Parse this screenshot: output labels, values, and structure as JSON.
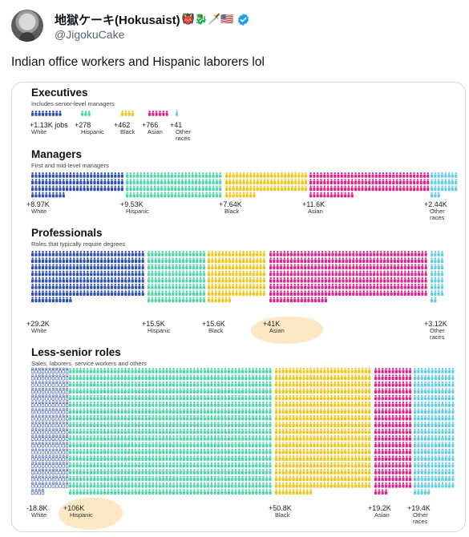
{
  "tweet": {
    "display_name": "地獄ケーキ(Hokusaist)",
    "name_emojis": "👹🐉🗡️🇺🇸",
    "handle": "@JigokuCake",
    "text": "Indian office workers and Hispanic laborers lol",
    "verified": true,
    "accent_color": "#1d9bf0"
  },
  "colors": {
    "white": "#2d4fb5",
    "hispanic": "#4fd6a6",
    "black": "#f2c51a",
    "asian": "#e0248b",
    "other": "#63cde6",
    "highlight": "#fcd694"
  },
  "chart_data": {
    "type": "pictogram",
    "sections": [
      {
        "title": "Executives",
        "subtitle": "Includes senior-level managers",
        "groups": [
          {
            "value": "+1.13K jobs",
            "label": "White",
            "label2": ""
          },
          {
            "value": "+278",
            "label": "Hispanic",
            "label2": ""
          },
          {
            "value": "+462",
            "label": "Black",
            "label2": ""
          },
          {
            "value": "+766",
            "label": "Asian",
            "label2": ""
          },
          {
            "value": "+41",
            "label": "Other",
            "label2": "races"
          }
        ]
      },
      {
        "title": "Managers",
        "subtitle": "First and mid-level managers",
        "groups": [
          {
            "value": "+8.97K",
            "label": "White",
            "label2": ""
          },
          {
            "value": "+9.53K",
            "label": "Hispanic",
            "label2": ""
          },
          {
            "value": "+7.64K",
            "label": "Black",
            "label2": ""
          },
          {
            "value": "+11.6K",
            "label": "Asian",
            "label2": ""
          },
          {
            "value": "+2.44K",
            "label": "Other",
            "label2": "races"
          }
        ]
      },
      {
        "title": "Professionals",
        "subtitle": "Roles that typically require degrees",
        "groups": [
          {
            "value": "+29.2K",
            "label": "White",
            "label2": ""
          },
          {
            "value": "+15.5K",
            "label": "Hispanic",
            "label2": ""
          },
          {
            "value": "+15.6K",
            "label": "Black",
            "label2": ""
          },
          {
            "value": "+41K",
            "label": "Asian",
            "label2": ""
          },
          {
            "value": "+3.12K",
            "label": "Other",
            "label2": "races"
          }
        ]
      },
      {
        "title": "Less-senior roles",
        "subtitle": "Sales, laborers, service workers and others",
        "groups": [
          {
            "value": "-18.8K",
            "label": "White",
            "label2": ""
          },
          {
            "value": "+106K",
            "label": "Hispanic",
            "label2": ""
          },
          {
            "value": "+50.8K",
            "label": "Black",
            "label2": ""
          },
          {
            "value": "+19.2K",
            "label": "Asian",
            "label2": ""
          },
          {
            "value": "+19.4K",
            "label": "Other",
            "label2": "races"
          }
        ]
      }
    ]
  }
}
